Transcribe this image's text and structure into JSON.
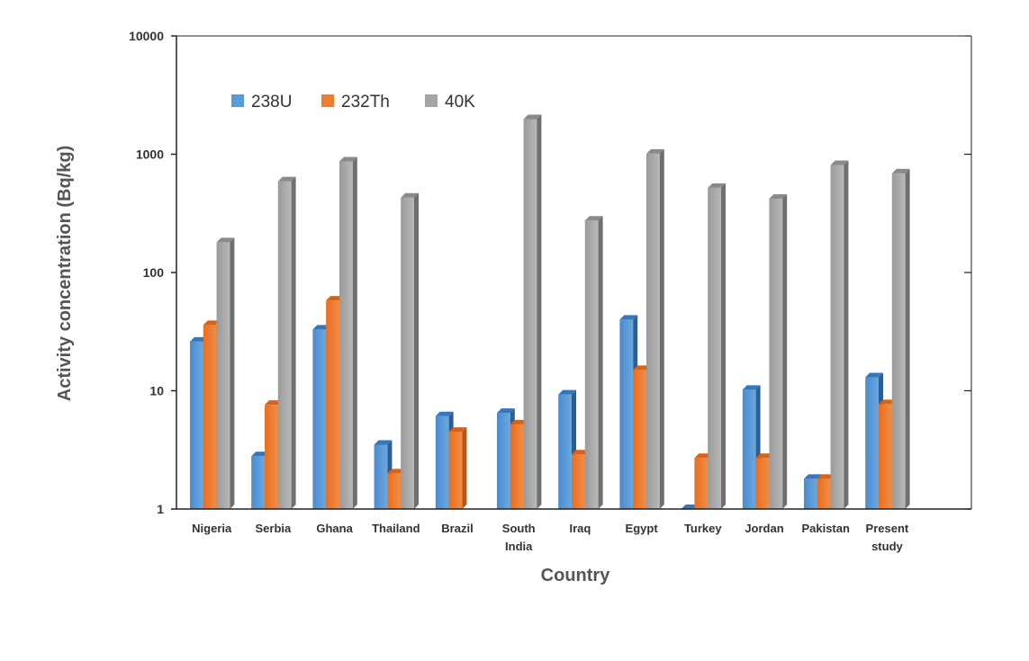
{
  "chart_data": {
    "type": "bar",
    "title": "",
    "xlabel": "Country",
    "ylabel": "Activity concentration (Bq/kg)",
    "yscale": "log",
    "ylim": [
      1,
      10000
    ],
    "y_ticks": [
      "1",
      "10",
      "100",
      "1000",
      "10000"
    ],
    "grid": false,
    "legend_position": "top-left",
    "categories": [
      [
        "Nigeria"
      ],
      [
        "Serbia"
      ],
      [
        "Ghana"
      ],
      [
        "Thailand"
      ],
      [
        "Brazil"
      ],
      [
        "South",
        "India"
      ],
      [
        "Iraq"
      ],
      [
        "Egypt"
      ],
      [
        "Turkey"
      ],
      [
        "Jordan"
      ],
      [
        "Pakistan"
      ],
      [
        "Present",
        "study"
      ]
    ],
    "series": [
      {
        "name": "238U",
        "color": "#5b9bd5",
        "values": [
          26,
          2.8,
          33,
          3.5,
          6.1,
          6.5,
          9.3,
          40,
          1.0,
          10.2,
          1.8,
          13
        ]
      },
      {
        "name": "232Th",
        "color": "#ed7d31",
        "values": [
          36,
          7.6,
          58,
          2.0,
          4.5,
          5.2,
          2.9,
          15,
          2.7,
          2.7,
          1.8,
          7.7
        ]
      },
      {
        "name": "40K",
        "color": "#a5a5a5",
        "values": [
          180,
          590,
          870,
          430,
          null,
          1980,
          275,
          1010,
          520,
          420,
          810,
          690
        ]
      }
    ]
  }
}
